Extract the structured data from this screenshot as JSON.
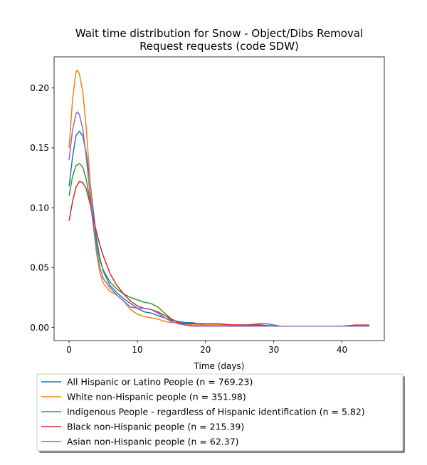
{
  "chart_data": {
    "type": "line",
    "title_lines": [
      "Wait time distribution  for Snow - Object/Dibs Removal",
      "Request  requests (code SDW)"
    ],
    "xlabel": "Time (days)",
    "ylabel": "",
    "xlim": [
      -2.2,
      46.2
    ],
    "ylim": [
      -0.011,
      0.226
    ],
    "x_ticks": [
      0,
      10,
      20,
      30,
      40
    ],
    "y_ticks": [
      0.0,
      0.05,
      0.1,
      0.15,
      0.2
    ],
    "x_tick_labels": [
      "0",
      "10",
      "20",
      "30",
      "40"
    ],
    "y_tick_labels": [
      "0.00",
      "0.05",
      "0.10",
      "0.15",
      "0.20"
    ],
    "grid": false,
    "legend_position": "below plot",
    "series": [
      {
        "name": "All Hispanic or Latino People (n = 769.23)",
        "color": "#1f77b4",
        "points": [
          [
            0,
            0.118
          ],
          [
            0.5,
            0.142
          ],
          [
            1,
            0.16
          ],
          [
            1.5,
            0.164
          ],
          [
            2,
            0.16
          ],
          [
            2.5,
            0.146
          ],
          [
            3,
            0.125
          ],
          [
            3.5,
            0.1
          ],
          [
            4,
            0.075
          ],
          [
            4.5,
            0.058
          ],
          [
            5,
            0.047
          ],
          [
            6,
            0.035
          ],
          [
            7,
            0.029
          ],
          [
            8,
            0.024
          ],
          [
            9,
            0.02
          ],
          [
            10,
            0.016
          ],
          [
            11,
            0.013
          ],
          [
            12,
            0.012
          ],
          [
            13,
            0.01
          ],
          [
            14,
            0.008
          ],
          [
            15,
            0.006
          ],
          [
            16,
            0.005
          ],
          [
            17,
            0.004
          ],
          [
            18,
            0.004
          ],
          [
            19,
            0.003
          ],
          [
            20,
            0.002
          ],
          [
            22,
            0.002
          ],
          [
            24,
            0.002
          ],
          [
            26,
            0.002
          ],
          [
            28,
            0.003
          ],
          [
            29,
            0.003
          ],
          [
            30,
            0.002
          ],
          [
            31,
            0.001
          ],
          [
            33,
            0.001
          ],
          [
            36,
            0.001
          ],
          [
            40,
            0.001
          ],
          [
            44,
            0.001
          ]
        ]
      },
      {
        "name": "White non-Hispanic people (n = 351.98)",
        "color": "#ff7f0e",
        "points": [
          [
            0,
            0.15
          ],
          [
            0.5,
            0.19
          ],
          [
            1,
            0.213
          ],
          [
            1.2,
            0.215
          ],
          [
            1.5,
            0.212
          ],
          [
            2,
            0.197
          ],
          [
            2.5,
            0.168
          ],
          [
            3,
            0.128
          ],
          [
            3.5,
            0.09
          ],
          [
            4,
            0.063
          ],
          [
            4.5,
            0.046
          ],
          [
            5,
            0.037
          ],
          [
            6,
            0.03
          ],
          [
            7,
            0.027
          ],
          [
            8,
            0.022
          ],
          [
            9,
            0.015
          ],
          [
            10,
            0.011
          ],
          [
            11,
            0.009
          ],
          [
            12,
            0.008
          ],
          [
            13,
            0.007
          ],
          [
            14,
            0.005
          ],
          [
            15,
            0.004
          ],
          [
            16,
            0.004
          ],
          [
            17,
            0.003
          ],
          [
            18,
            0.002
          ],
          [
            20,
            0.002
          ],
          [
            22,
            0.002
          ],
          [
            24,
            0.002
          ],
          [
            26,
            0.002
          ],
          [
            28,
            0.002
          ],
          [
            30,
            0.001
          ],
          [
            34,
            0.001
          ],
          [
            38,
            0.001
          ],
          [
            42,
            0.001
          ],
          [
            44,
            0.001
          ]
        ]
      },
      {
        "name": "Indigenous People - regardless of Hispanic identification (n = 5.82)",
        "color": "#2ca02c",
        "points": [
          [
            0,
            0.11
          ],
          [
            0.5,
            0.126
          ],
          [
            1,
            0.135
          ],
          [
            1.5,
            0.137
          ],
          [
            2,
            0.134
          ],
          [
            2.5,
            0.124
          ],
          [
            3,
            0.108
          ],
          [
            3.5,
            0.088
          ],
          [
            4,
            0.07
          ],
          [
            4.5,
            0.056
          ],
          [
            5,
            0.048
          ],
          [
            6,
            0.038
          ],
          [
            7,
            0.032
          ],
          [
            8,
            0.028
          ],
          [
            9,
            0.025
          ],
          [
            10,
            0.023
          ],
          [
            11,
            0.021
          ],
          [
            12,
            0.02
          ],
          [
            13,
            0.017
          ],
          [
            14,
            0.012
          ],
          [
            15,
            0.007
          ],
          [
            16,
            0.004
          ],
          [
            17,
            0.002
          ],
          [
            18,
            0.001
          ],
          [
            20,
            0.001
          ],
          [
            24,
            0.001
          ],
          [
            28,
            0.001
          ],
          [
            32,
            0.001
          ],
          [
            36,
            0.001
          ],
          [
            40,
            0.001
          ],
          [
            44,
            0.001
          ]
        ]
      },
      {
        "name": "Black non-Hispanic people (n = 215.39)",
        "color": "#d62728",
        "points": [
          [
            0,
            0.089
          ],
          [
            0.5,
            0.105
          ],
          [
            1,
            0.117
          ],
          [
            1.5,
            0.122
          ],
          [
            2,
            0.121
          ],
          [
            2.5,
            0.116
          ],
          [
            3,
            0.105
          ],
          [
            3.5,
            0.092
          ],
          [
            4,
            0.08
          ],
          [
            4.5,
            0.069
          ],
          [
            5,
            0.06
          ],
          [
            6,
            0.045
          ],
          [
            7,
            0.035
          ],
          [
            8,
            0.028
          ],
          [
            9,
            0.022
          ],
          [
            10,
            0.018
          ],
          [
            11,
            0.016
          ],
          [
            12,
            0.015
          ],
          [
            13,
            0.013
          ],
          [
            14,
            0.01
          ],
          [
            15,
            0.007
          ],
          [
            16,
            0.004
          ],
          [
            17,
            0.003
          ],
          [
            18,
            0.003
          ],
          [
            20,
            0.003
          ],
          [
            22,
            0.003
          ],
          [
            24,
            0.002
          ],
          [
            26,
            0.002
          ],
          [
            28,
            0.002
          ],
          [
            30,
            0.001
          ],
          [
            34,
            0.001
          ],
          [
            38,
            0.001
          ],
          [
            40,
            0.001
          ],
          [
            42,
            0.002
          ],
          [
            44,
            0.002
          ]
        ]
      },
      {
        "name": "Asian non-Hispanic people (n = 62.37)",
        "color": "#9467bd",
        "points": [
          [
            0,
            0.14
          ],
          [
            0.5,
            0.165
          ],
          [
            1,
            0.178
          ],
          [
            1.2,
            0.18
          ],
          [
            1.5,
            0.178
          ],
          [
            2,
            0.166
          ],
          [
            2.5,
            0.143
          ],
          [
            3,
            0.115
          ],
          [
            3.5,
            0.087
          ],
          [
            4,
            0.065
          ],
          [
            4.5,
            0.05
          ],
          [
            5,
            0.041
          ],
          [
            6,
            0.033
          ],
          [
            7,
            0.027
          ],
          [
            8,
            0.022
          ],
          [
            9,
            0.017
          ],
          [
            10,
            0.016
          ],
          [
            11,
            0.016
          ],
          [
            12,
            0.015
          ],
          [
            13,
            0.012
          ],
          [
            14,
            0.008
          ],
          [
            15,
            0.005
          ],
          [
            16,
            0.003
          ],
          [
            17,
            0.002
          ],
          [
            18,
            0.001
          ],
          [
            20,
            0.001
          ],
          [
            24,
            0.001
          ],
          [
            28,
            0.001
          ],
          [
            32,
            0.001
          ],
          [
            36,
            0.001
          ],
          [
            40,
            0.001
          ],
          [
            44,
            0.001
          ]
        ]
      }
    ]
  }
}
